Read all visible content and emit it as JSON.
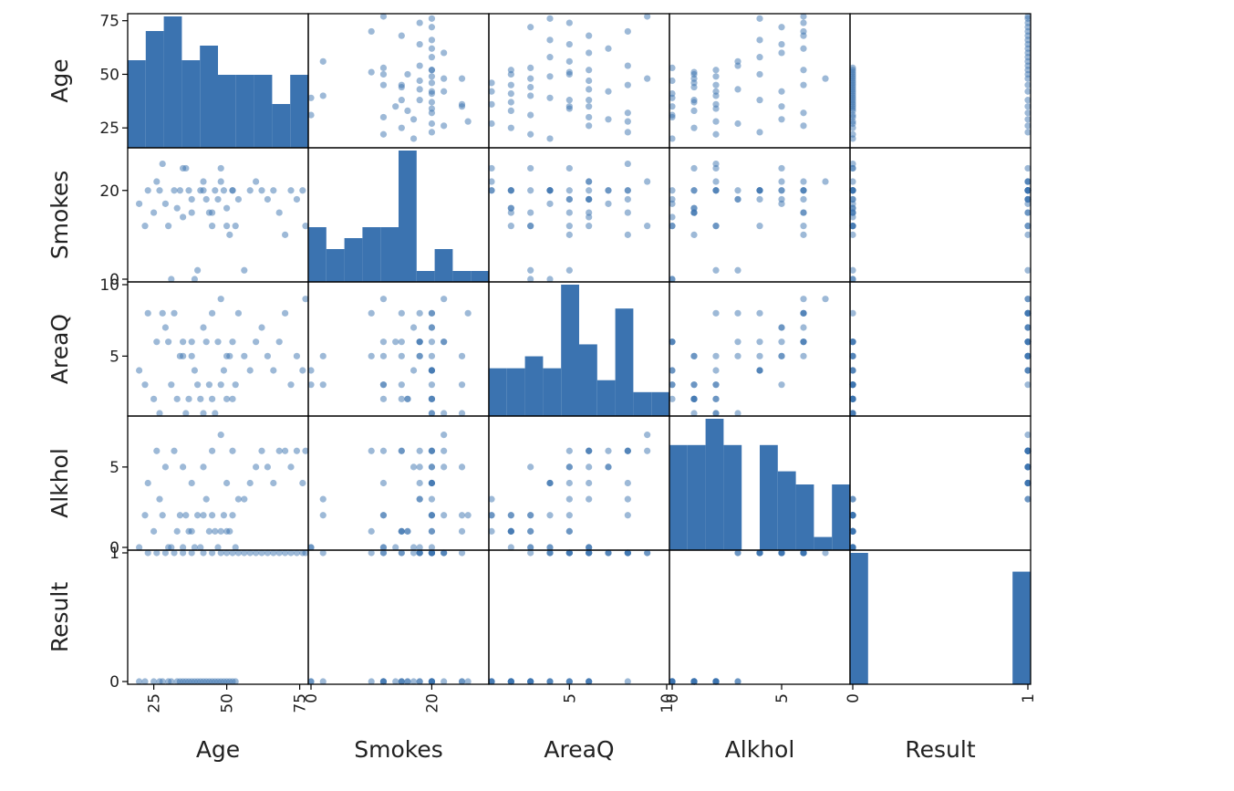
{
  "chart_data": {
    "type": "scatter",
    "matrix_type": "scatter-matrix",
    "diagonal": "histogram",
    "colors": {
      "marks": "#3b73b0",
      "frame": "#000000",
      "text": "#222222"
    },
    "variables": [
      {
        "name": "Age",
        "range": [
          17,
          77
        ],
        "ticks": [
          25,
          50,
          75
        ],
        "tick_labels": [
          "25",
          "50",
          "75"
        ]
      },
      {
        "name": "Smokes",
        "range": [
          0,
          29
        ],
        "ticks": [
          0,
          20
        ],
        "tick_labels": [
          "0",
          "20"
        ]
      },
      {
        "name": "AreaQ",
        "range": [
          1,
          10
        ],
        "ticks": [
          5,
          10
        ],
        "tick_labels": [
          "5",
          "10"
        ]
      },
      {
        "name": "Alkhol",
        "range": [
          0,
          8
        ],
        "ticks": [
          0,
          5
        ],
        "tick_labels": [
          "0",
          "5"
        ]
      },
      {
        "name": "Result",
        "range": [
          0,
          1
        ],
        "ticks": [
          0,
          1
        ],
        "tick_labels": [
          "0",
          "1"
        ]
      }
    ],
    "histograms": [
      {
        "variable": "Age",
        "bins": [
          18,
          24,
          30,
          36,
          42,
          48,
          54,
          60,
          66,
          72,
          78
        ],
        "counts": [
          6,
          8,
          9,
          6,
          7,
          5,
          5,
          5,
          3,
          5
        ]
      },
      {
        "variable": "Smokes",
        "bins": [
          0,
          3,
          6,
          9,
          12,
          15,
          18,
          21,
          24,
          27,
          30
        ],
        "counts": [
          5,
          3,
          4,
          5,
          5,
          12,
          1,
          3,
          1,
          1
        ]
      },
      {
        "variable": "AreaQ",
        "bins": [
          1,
          1.9,
          2.8,
          3.7,
          4.6,
          5.5,
          6.4,
          7.3,
          8.2,
          9.1,
          10
        ],
        "counts": [
          4,
          4,
          5,
          4,
          11,
          6,
          3,
          9,
          2,
          2
        ]
      },
      {
        "variable": "Alkhol",
        "bins": [
          0,
          0.8,
          1.6,
          2.4,
          3.2,
          4.0,
          4.8,
          5.6,
          6.4,
          7.2,
          8.0
        ],
        "counts": [
          8,
          8,
          10,
          8,
          0,
          8,
          6,
          5,
          1,
          5
        ]
      },
      {
        "variable": "Result",
        "bins": [
          0,
          0.1,
          0.2,
          0.3,
          0.4,
          0.5,
          0.6,
          0.7,
          0.8,
          0.9,
          1.0
        ],
        "counts": [
          28,
          0,
          0,
          0,
          0,
          0,
          0,
          0,
          0,
          24
        ]
      }
    ],
    "records": [
      [
        20,
        17,
        4,
        0,
        0
      ],
      [
        22,
        12,
        3,
        2,
        0
      ],
      [
        25,
        15,
        2,
        1,
        0
      ],
      [
        27,
        20,
        1,
        3,
        0
      ],
      [
        28,
        26,
        8,
        2,
        0
      ],
      [
        30,
        12,
        6,
        0,
        0
      ],
      [
        31,
        0,
        3,
        0,
        0
      ],
      [
        33,
        16,
        2,
        1,
        0
      ],
      [
        34,
        20,
        5,
        2,
        0
      ],
      [
        35,
        14,
        6,
        0,
        0
      ],
      [
        36,
        25,
        1,
        2,
        0
      ],
      [
        37,
        20,
        2,
        1,
        0
      ],
      [
        38,
        15,
        5,
        1,
        0
      ],
      [
        39,
        0,
        4,
        0,
        0
      ],
      [
        40,
        2,
        3,
        2,
        0
      ],
      [
        41,
        20,
        2,
        0,
        0
      ],
      [
        42,
        22,
        1,
        2,
        0
      ],
      [
        43,
        18,
        6,
        3,
        0
      ],
      [
        44,
        15,
        3,
        1,
        0
      ],
      [
        45,
        12,
        2,
        2,
        0
      ],
      [
        46,
        20,
        1,
        1,
        0
      ],
      [
        47,
        18,
        6,
        0,
        0
      ],
      [
        48,
        25,
        3,
        1,
        0
      ],
      [
        49,
        20,
        4,
        2,
        0
      ],
      [
        50,
        16,
        2,
        1,
        0
      ],
      [
        51,
        10,
        5,
        1,
        0
      ],
      [
        52,
        20,
        2,
        2,
        0
      ],
      [
        53,
        12,
        3,
        0,
        0
      ],
      [
        23,
        20,
        8,
        4,
        1
      ],
      [
        26,
        22,
        6,
        6,
        1
      ],
      [
        29,
        17,
        7,
        5,
        1
      ],
      [
        32,
        20,
        8,
        6,
        1
      ],
      [
        35,
        25,
        5,
        5,
        1
      ],
      [
        38,
        18,
        6,
        4,
        1
      ],
      [
        42,
        20,
        7,
        5,
        1
      ],
      [
        45,
        15,
        8,
        6,
        1
      ],
      [
        48,
        22,
        9,
        7,
        1
      ],
      [
        50,
        12,
        5,
        4,
        1
      ],
      [
        52,
        20,
        6,
        6,
        1
      ],
      [
        54,
        18,
        8,
        3,
        1
      ],
      [
        56,
        2,
        5,
        3,
        1
      ],
      [
        58,
        20,
        4,
        4,
        1
      ],
      [
        60,
        22,
        6,
        5,
        1
      ],
      [
        62,
        20,
        7,
        6,
        1
      ],
      [
        64,
        18,
        5,
        5,
        1
      ],
      [
        66,
        20,
        4,
        4,
        1
      ],
      [
        68,
        15,
        6,
        6,
        1
      ],
      [
        70,
        10,
        8,
        6,
        1
      ],
      [
        72,
        20,
        3,
        5,
        1
      ],
      [
        74,
        18,
        5,
        6,
        1
      ],
      [
        76,
        20,
        4,
        4,
        1
      ],
      [
        77,
        12,
        9,
        6,
        1
      ]
    ],
    "grid": false,
    "legend": "none"
  }
}
